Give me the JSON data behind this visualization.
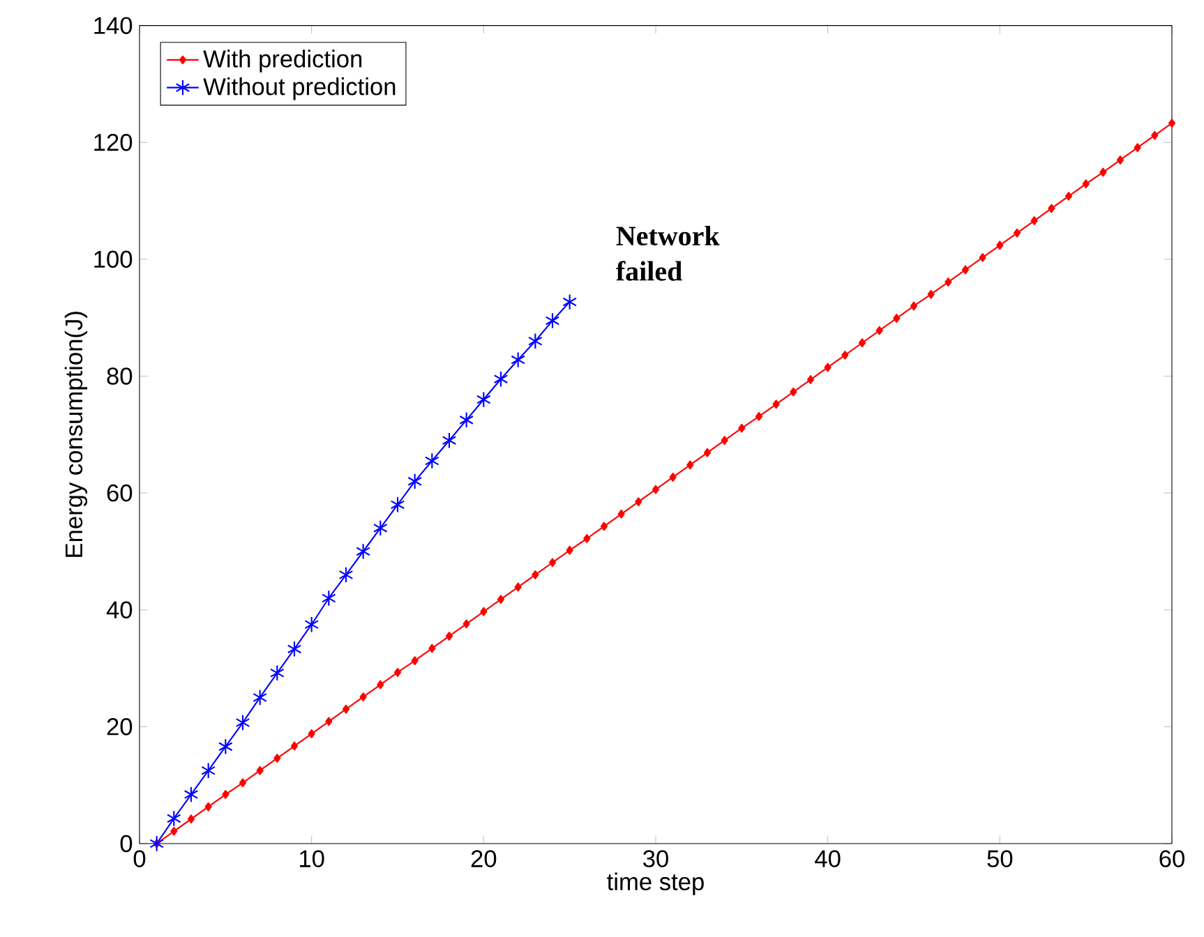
{
  "chart_data": {
    "type": "line",
    "xlabel": "time step",
    "ylabel": "Energy consumption(J)",
    "xlim": [
      0,
      60
    ],
    "xticks": [
      0,
      10,
      20,
      30,
      40,
      50,
      60
    ],
    "ylim": [
      0,
      140
    ],
    "yticks": [
      0,
      20,
      40,
      60,
      80,
      100,
      120,
      140
    ],
    "legend": "top left",
    "grid": false,
    "line_style": "solid",
    "annotations": [
      "**Network failed**"
    ],
    "series": [
      {
        "name": "With prediction",
        "color": "#ff0000",
        "marker": "diamond",
        "x": [
          1,
          2,
          3,
          4,
          5,
          6,
          7,
          8,
          9,
          10,
          11,
          12,
          13,
          14,
          15,
          16,
          17,
          18,
          19,
          20,
          21,
          22,
          23,
          24,
          25,
          26,
          27,
          28,
          29,
          30,
          31,
          32,
          33,
          34,
          35,
          36,
          37,
          38,
          39,
          40,
          41,
          42,
          43,
          44,
          45,
          46,
          47,
          48,
          49,
          50,
          51,
          52,
          53,
          54,
          55,
          56,
          57,
          58,
          59,
          60
        ],
        "values": [
          0,
          2.1,
          4.2,
          6.3,
          8.4,
          10.4,
          12.5,
          14.6,
          16.7,
          18.8,
          20.9,
          23,
          25.1,
          27.2,
          29.3,
          31.3,
          33.4,
          35.5,
          37.6,
          39.7,
          41.8,
          43.9,
          46,
          48.1,
          50.2,
          52.2,
          54.3,
          56.4,
          58.5,
          60.6,
          62.7,
          64.8,
          66.9,
          69,
          71.1,
          73.1,
          75.2,
          77.3,
          79.4,
          81.5,
          83.6,
          85.7,
          87.8,
          89.9,
          92,
          94,
          96.1,
          98.2,
          100.3,
          102.4,
          104.5,
          106.6,
          108.7,
          110.8,
          112.9,
          114.9,
          117,
          119.1,
          121.2,
          123.3
        ]
      },
      {
        "name": "Without prediction",
        "color": "#0000ff",
        "marker": "cross",
        "x": [
          1,
          2,
          3,
          4,
          5,
          6,
          7,
          8,
          9,
          10,
          11,
          12,
          13,
          14,
          15,
          16,
          17,
          18,
          19,
          20,
          21,
          22,
          23,
          24,
          25
        ],
        "values": [
          0,
          4.3,
          8.4,
          12.5,
          16.6,
          20.7,
          25,
          29.2,
          33.3,
          37.5,
          42,
          46,
          50,
          54,
          58,
          62,
          65.5,
          69,
          72.5,
          76,
          79.5,
          82.8,
          86,
          89.5,
          92.7
        ]
      }
    ]
  }
}
